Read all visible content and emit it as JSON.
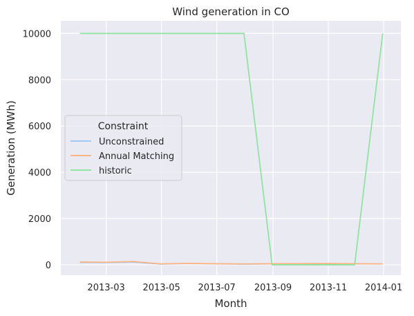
{
  "chart_data": {
    "type": "line",
    "title": "Wind generation in CO",
    "xlabel": "Month",
    "ylabel": "Generation (MWh)",
    "x": [
      "2013-01-31",
      "2013-02-28",
      "2013-03-31",
      "2013-04-30",
      "2013-05-31",
      "2013-06-30",
      "2013-07-31",
      "2013-08-31",
      "2013-09-30",
      "2013-10-31",
      "2013-11-30",
      "2013-12-31"
    ],
    "xlim": [
      "2013-01-10",
      "2014-01-20"
    ],
    "ylim": [
      -450,
      10550
    ],
    "x_ticks": [
      "2013-03-01",
      "2013-05-01",
      "2013-07-01",
      "2013-09-01",
      "2013-11-01",
      "2014-01-01"
    ],
    "x_tick_labels": [
      "2013-03",
      "2013-05",
      "2013-07",
      "2013-09",
      "2013-11",
      "2014-01"
    ],
    "y_ticks": [
      0,
      2000,
      4000,
      6000,
      8000,
      10000
    ],
    "y_tick_labels": [
      "0",
      "2000",
      "4000",
      "6000",
      "8000",
      "10000"
    ],
    "grid": true,
    "legend": {
      "title": "Constraint",
      "placement": "center-left"
    },
    "series": [
      {
        "name": "Unconstrained",
        "color": "#a1c9f4",
        "values": [
          100,
          95,
          120,
          30,
          55,
          40,
          30,
          40,
          45,
          50,
          40,
          35
        ]
      },
      {
        "name": "Annual Matching",
        "color": "#ffb482",
        "values": [
          120,
          110,
          140,
          40,
          60,
          45,
          35,
          45,
          50,
          55,
          45,
          40
        ]
      },
      {
        "name": "historic",
        "color": "#8de5a1",
        "values": [
          10000,
          10000,
          10000,
          10000,
          10000,
          10000,
          10000,
          0,
          0,
          0,
          0,
          10000
        ]
      }
    ]
  }
}
